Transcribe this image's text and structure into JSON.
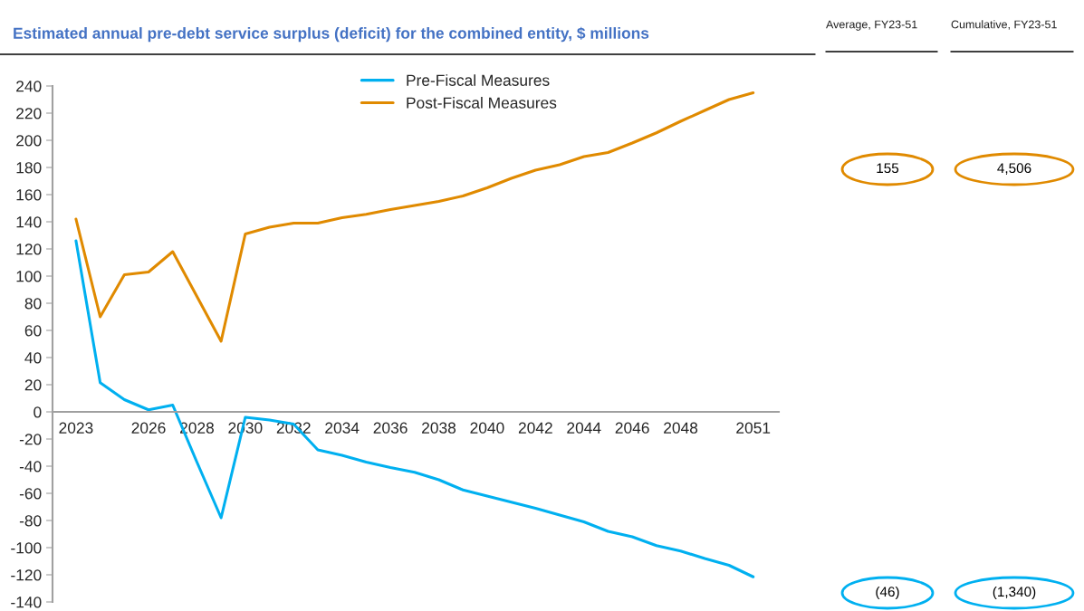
{
  "chart_data": {
    "type": "line",
    "title": "Estimated annual pre-debt service surplus (deficit) for the combined entity, $ millions",
    "categories": [
      "2023",
      null,
      null,
      "2026",
      null,
      "2028",
      null,
      "2030",
      null,
      "2032",
      null,
      "2034",
      null,
      "2036",
      null,
      "2038",
      null,
      "2040",
      null,
      "2042",
      null,
      "2044",
      null,
      "2046",
      null,
      "2048",
      null,
      null,
      "2051"
    ],
    "series": [
      {
        "name": "Pre-Fiscal Measures",
        "color": "#00b0f0",
        "values": [
          126,
          21.5,
          9,
          1.5,
          5,
          -37,
          -78,
          -4,
          -6,
          -9,
          -28,
          -32,
          -37,
          -41,
          -44.5,
          -50,
          -57.5,
          -62,
          -66.5,
          -71,
          -76,
          -81,
          -88,
          -92,
          -98.5,
          -102.5,
          -108,
          -113,
          -121.5
        ]
      },
      {
        "name": "Post-Fiscal Measures",
        "color": "#e08a00",
        "values": [
          142,
          70,
          101,
          103,
          118,
          85,
          52,
          131,
          136,
          139,
          139,
          143,
          145.5,
          149,
          152,
          155,
          159,
          165,
          172,
          178,
          182,
          188,
          191,
          198,
          205.5,
          214,
          222,
          230,
          235
        ]
      }
    ],
    "ylim": [
      -140,
      240
    ],
    "yticks": [
      -140,
      -120,
      -100,
      -80,
      -60,
      -40,
      -20,
      0,
      20,
      40,
      60,
      80,
      100,
      120,
      140,
      160,
      180,
      200,
      220,
      240
    ],
    "legend": "top",
    "grid": false,
    "marker": "none",
    "line_style": "solid",
    "annotations": [
      "Average, FY23-51",
      "Cumulative, FY23-51",
      "155",
      "4,506",
      "(46)",
      "(1,340)"
    ]
  }
}
